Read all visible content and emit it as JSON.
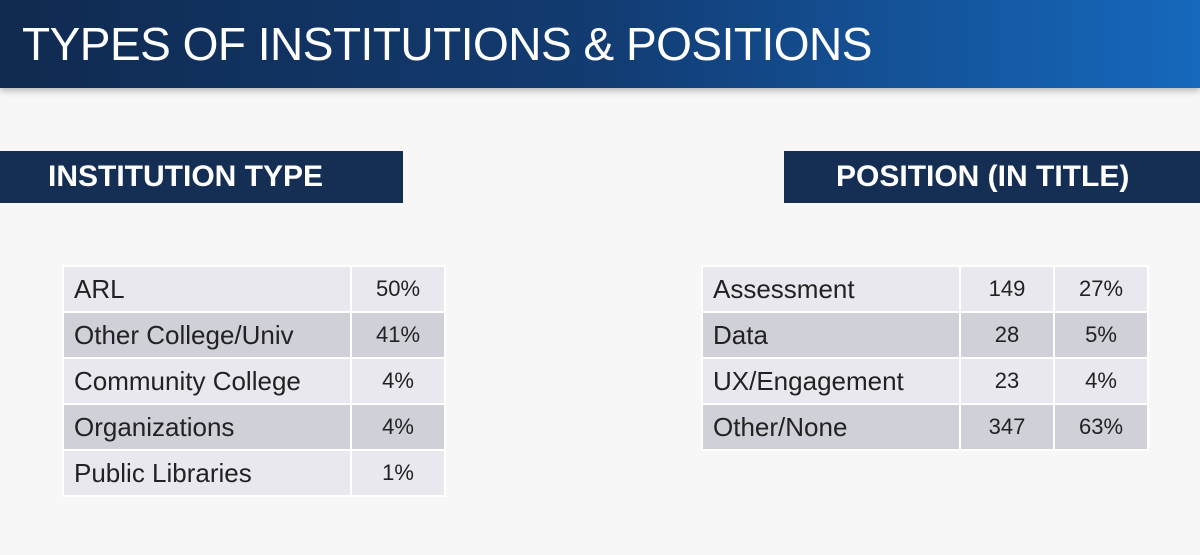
{
  "header": {
    "title": "TYPES OF INSTITUTIONS & POSITIONS"
  },
  "institution": {
    "title": "INSTITUTION TYPE",
    "rows": [
      [
        "ARL",
        "50%"
      ],
      [
        "Other College/Univ",
        "41%"
      ],
      [
        "Community College",
        "4%"
      ],
      [
        "Organizations",
        "4%"
      ],
      [
        "Public Libraries",
        "1%"
      ]
    ]
  },
  "position": {
    "title": "POSITION (IN TITLE)",
    "rows": [
      [
        "Assessment",
        "149",
        "27%"
      ],
      [
        "Data",
        "28",
        "5%"
      ],
      [
        "UX/Engagement",
        "23",
        "4%"
      ],
      [
        "Other/None",
        "347",
        "63%"
      ]
    ]
  }
}
